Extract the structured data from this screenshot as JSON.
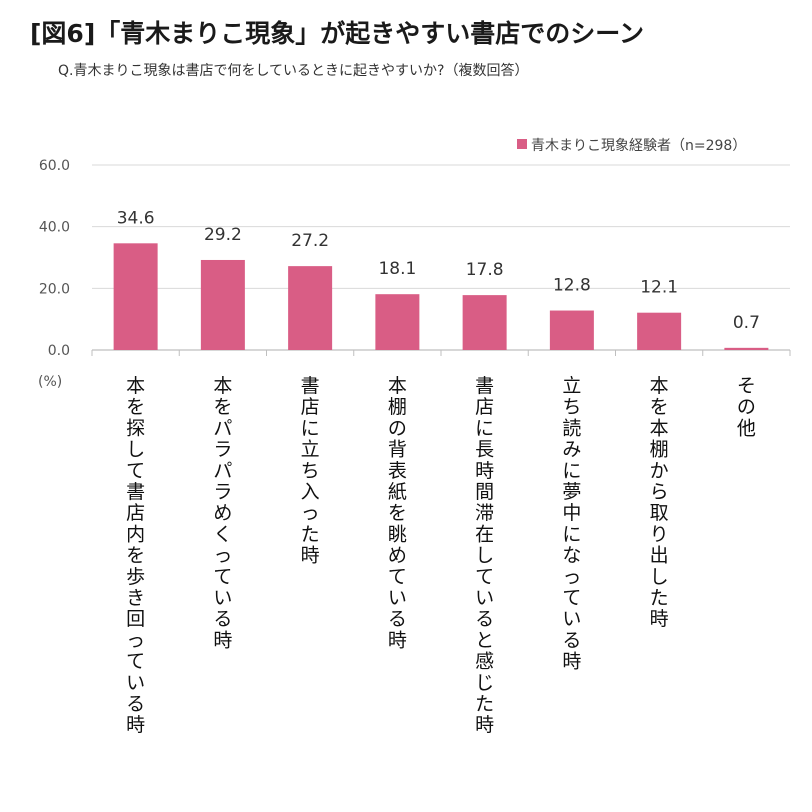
{
  "title": "[図6]「青木まりこ現象」が起きやすい書店でのシーン",
  "subtitle": "Q.青木まりこ現象は書店で何をしているときに起きやすいか?（複数回答）",
  "unit_label": "(%)",
  "colors": {
    "bar": "#d95d85",
    "grid": "#d9d9d9",
    "axis": "#bfbfbf"
  },
  "chart_data": {
    "type": "bar",
    "title": "[図6]「青木まりこ現象」が起きやすい書店でのシーン",
    "xlabel": "",
    "ylabel": "(%)",
    "ylim": [
      0,
      60
    ],
    "yticks": [
      "60.0",
      "40.0",
      "20.0",
      "0.0"
    ],
    "ytick_values": [
      60,
      40,
      20,
      0
    ],
    "legend": {
      "label": "青木まりこ現象経験者（n=298）",
      "position": "top-right"
    },
    "categories": [
      "本を探して書店内を歩き回っている時",
      "本をパラパラめくっている時",
      "書店に立ち入った時",
      "本棚の背表紙を眺めている時",
      "書店に長時間滞在していると感じた時",
      "立ち読みに夢中になっている時",
      "本を本棚から取り出した時",
      "その他"
    ],
    "values": [
      34.6,
      29.2,
      27.2,
      18.1,
      17.8,
      12.8,
      12.1,
      0.7
    ],
    "value_labels": [
      "34.6",
      "29.2",
      "27.2",
      "18.1",
      "17.8",
      "12.8",
      "12.1",
      "0.7"
    ]
  }
}
